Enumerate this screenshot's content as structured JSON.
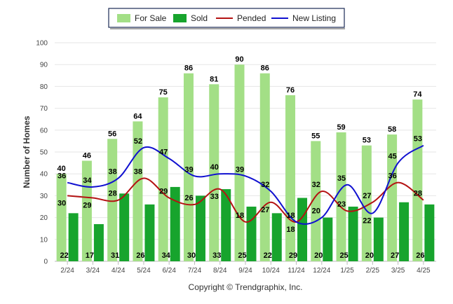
{
  "chart_data": {
    "type": "bar",
    "ylabel": "Number of Homes",
    "xlabel": "",
    "ylim": [
      0,
      100
    ],
    "yticks": [
      0,
      10,
      20,
      30,
      40,
      50,
      60,
      70,
      80,
      90,
      100
    ],
    "grid": true,
    "legend_position": "top-center",
    "categories": [
      "2/24",
      "3/24",
      "4/24",
      "5/24",
      "6/24",
      "7/24",
      "8/24",
      "9/24",
      "10/24",
      "11/24",
      "12/24",
      "1/25",
      "2/25",
      "3/25",
      "4/25"
    ],
    "series": [
      {
        "name": "For Sale",
        "kind": "bar",
        "color": "#a3df86",
        "values": [
          40,
          46,
          56,
          64,
          75,
          86,
          81,
          90,
          86,
          76,
          55,
          59,
          53,
          58,
          74
        ]
      },
      {
        "name": "Sold",
        "kind": "bar",
        "color": "#17a42d",
        "values": [
          22,
          17,
          31,
          26,
          34,
          30,
          33,
          25,
          22,
          29,
          20,
          25,
          20,
          27,
          26
        ]
      },
      {
        "name": "Pended",
        "kind": "line",
        "color": "#b41313",
        "values": [
          30,
          29,
          28,
          38,
          29,
          26,
          33,
          18,
          27,
          18,
          32,
          23,
          27,
          36,
          28
        ]
      },
      {
        "name": "New Listing",
        "kind": "line",
        "color": "#1010d0",
        "values": [
          36,
          34,
          38,
          52,
          47,
          39,
          40,
          39,
          32,
          18,
          20,
          35,
          22,
          45,
          53
        ]
      }
    ],
    "footer": "Copyright © Trendgraphix, Inc."
  }
}
